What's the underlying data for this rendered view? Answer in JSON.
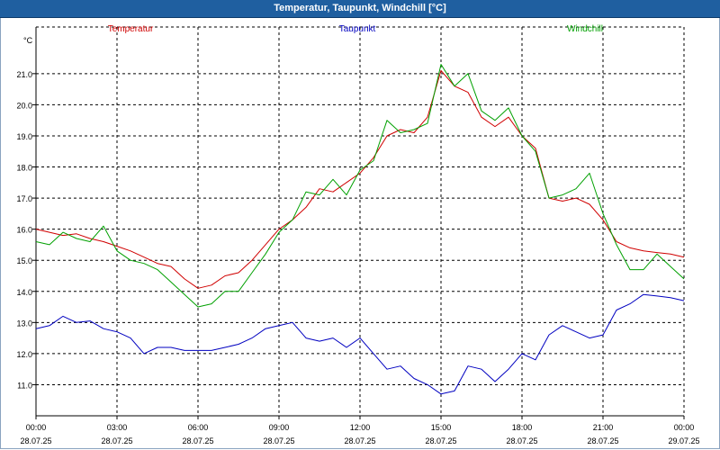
{
  "window": {
    "title": "Temperatur, Taupunkt, Windchill [°C]"
  },
  "chart_data": {
    "type": "line",
    "title": "Temperatur, Taupunkt, Windchill [°C]",
    "ylabel": "°C",
    "ylim": [
      10.0,
      22.5
    ],
    "yticks": [
      11.0,
      12.0,
      13.0,
      14.0,
      15.0,
      16.0,
      17.0,
      18.0,
      19.0,
      20.0,
      21.0
    ],
    "xlim": [
      0,
      24
    ],
    "xticks": [
      {
        "hour": 0,
        "time": "00:00",
        "date": "28.07.25"
      },
      {
        "hour": 3,
        "time": "03:00",
        "date": "28.07.25"
      },
      {
        "hour": 6,
        "time": "06:00",
        "date": "28.07.25"
      },
      {
        "hour": 9,
        "time": "09:00",
        "date": "28.07.25"
      },
      {
        "hour": 12,
        "time": "12:00",
        "date": "28.07.25"
      },
      {
        "hour": 15,
        "time": "15:00",
        "date": "28.07.25"
      },
      {
        "hour": 18,
        "time": "18:00",
        "date": "28.07.25"
      },
      {
        "hour": 21,
        "time": "21:00",
        "date": "28.07.25"
      },
      {
        "hour": 24,
        "time": "00:00",
        "date": "29.07.25"
      }
    ],
    "grid": true,
    "series": [
      {
        "name": "Temperatur",
        "color": "#d00000",
        "x": [
          0,
          0.5,
          1,
          1.5,
          2,
          2.5,
          3,
          3.5,
          4,
          4.5,
          5,
          5.5,
          6,
          6.5,
          7,
          7.5,
          8,
          8.5,
          9,
          9.5,
          10,
          10.5,
          11,
          11.5,
          12,
          12.5,
          13,
          13.5,
          14,
          14.5,
          15,
          15.5,
          16,
          16.5,
          17,
          17.5,
          18,
          18.5,
          19,
          19.5,
          20,
          20.5,
          21,
          21.5,
          22,
          22.5,
          23,
          23.5,
          24
        ],
        "values": [
          16.0,
          15.9,
          15.8,
          15.85,
          15.7,
          15.6,
          15.45,
          15.3,
          15.1,
          14.9,
          14.8,
          14.4,
          14.1,
          14.2,
          14.5,
          14.6,
          15.0,
          15.5,
          16.0,
          16.3,
          16.7,
          17.3,
          17.2,
          17.5,
          17.8,
          18.3,
          19.0,
          19.2,
          19.1,
          19.6,
          21.1,
          20.6,
          20.4,
          19.6,
          19.3,
          19.6,
          19.0,
          18.6,
          17.0,
          16.9,
          17.0,
          16.8,
          16.3,
          15.6,
          15.4,
          15.3,
          15.25,
          15.2,
          15.1
        ]
      },
      {
        "name": "Taupunkt",
        "color": "#0000c0",
        "x": [
          0,
          0.5,
          1,
          1.5,
          2,
          2.5,
          3,
          3.5,
          4,
          4.5,
          5,
          5.5,
          6,
          6.5,
          7,
          7.5,
          8,
          8.5,
          9,
          9.5,
          10,
          10.5,
          11,
          11.5,
          12,
          12.5,
          13,
          13.5,
          14,
          14.5,
          15,
          15.5,
          16,
          16.5,
          17,
          17.5,
          18,
          18.5,
          19,
          19.5,
          20,
          20.5,
          21,
          21.5,
          22,
          22.5,
          23,
          23.5,
          24
        ],
        "values": [
          12.8,
          12.9,
          13.2,
          13.0,
          13.05,
          12.8,
          12.7,
          12.5,
          12.0,
          12.2,
          12.2,
          12.1,
          12.1,
          12.1,
          12.2,
          12.3,
          12.5,
          12.8,
          12.9,
          13.0,
          12.5,
          12.4,
          12.5,
          12.2,
          12.5,
          12.0,
          11.5,
          11.6,
          11.2,
          11.0,
          10.7,
          10.8,
          11.6,
          11.5,
          11.1,
          11.5,
          12.0,
          11.8,
          12.6,
          12.9,
          12.7,
          12.5,
          12.6,
          13.4,
          13.6,
          13.9,
          13.85,
          13.8,
          13.7
        ]
      },
      {
        "name": "Windchill",
        "color": "#00a000",
        "x": [
          0,
          0.5,
          1,
          1.5,
          2,
          2.5,
          3,
          3.5,
          4,
          4.5,
          5,
          5.5,
          6,
          6.5,
          7,
          7.5,
          8,
          8.5,
          9,
          9.5,
          10,
          10.5,
          11,
          11.5,
          12,
          12.5,
          13,
          13.5,
          14,
          14.5,
          15,
          15.5,
          16,
          16.5,
          17,
          17.5,
          18,
          18.5,
          19,
          19.5,
          20,
          20.5,
          21,
          21.5,
          22,
          22.5,
          23,
          23.5,
          24
        ],
        "values": [
          15.6,
          15.5,
          15.9,
          15.7,
          15.6,
          16.1,
          15.3,
          15.0,
          14.9,
          14.7,
          14.3,
          13.9,
          13.5,
          13.6,
          14.0,
          14.0,
          14.6,
          15.2,
          15.9,
          16.3,
          17.2,
          17.1,
          17.6,
          17.1,
          17.9,
          18.2,
          19.5,
          19.1,
          19.2,
          19.4,
          21.3,
          20.6,
          21.0,
          19.8,
          19.5,
          19.9,
          19.0,
          18.5,
          17.0,
          17.1,
          17.3,
          17.8,
          16.5,
          15.5,
          14.7,
          14.7,
          15.2,
          14.8,
          14.4
        ]
      }
    ]
  }
}
